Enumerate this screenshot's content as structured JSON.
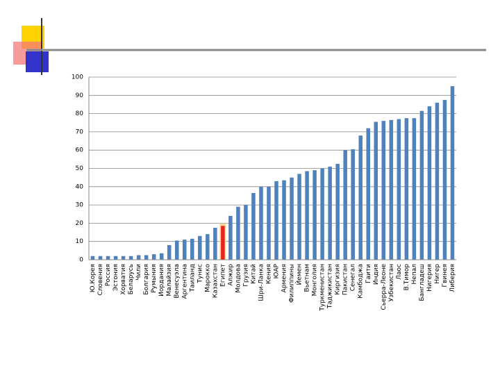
{
  "chart_data": {
    "type": "bar",
    "categories": [
      "Ю.Корея",
      "Словения",
      "Россия",
      "Эстония",
      "Хорватия",
      "Беларусь",
      "Чили",
      "Болгария",
      "Румыния",
      "Иордания",
      "Малайзия",
      "Венесуэла",
      "Аргентина",
      "Таиланд",
      "Тунис",
      "Марокко",
      "Казахстан",
      "Египет",
      "Алжир",
      "Молдова",
      "Грузия",
      "Китай",
      "Шри-Ланка",
      "Кения",
      "ЮАР",
      "Армения",
      "Филиппины",
      "Йемен",
      "Вьетнам",
      "Монголия",
      "Туркменистан",
      "Таджикистан",
      "Киргизия",
      "Пакистан",
      "Сенегал",
      "Камбоджа",
      "Гаити",
      "Индия",
      "Сьерра-Леоне",
      "Узбекистан",
      "Лаос",
      "В.Тимор",
      "Непал",
      "Бангладеш",
      "Нигерия",
      "Нигер",
      "Гвинея",
      "Либерия"
    ],
    "values": [
      2,
      2,
      2,
      2,
      2,
      2,
      2.5,
      2.5,
      3,
      3.5,
      8,
      10.5,
      11,
      11.5,
      13,
      14,
      17.5,
      18.5,
      24,
      29,
      30,
      36.5,
      40,
      40,
      43,
      43.5,
      45,
      47,
      48.5,
      49,
      50,
      51,
      52.5,
      60,
      60.5,
      68,
      72,
      75.5,
      76,
      76.5,
      77,
      77.5,
      77.5,
      81.5,
      84,
      86,
      87.5,
      95
    ],
    "color": "#4f81bd",
    "highlight": {
      "category": "Египет",
      "color": "#e8251c",
      "band_color": "#fbd7a4"
    },
    "ylim": [
      0,
      100
    ],
    "yticks": [
      0,
      10,
      20,
      30,
      40,
      50,
      60,
      70,
      80,
      90,
      100
    ],
    "grid": true
  }
}
